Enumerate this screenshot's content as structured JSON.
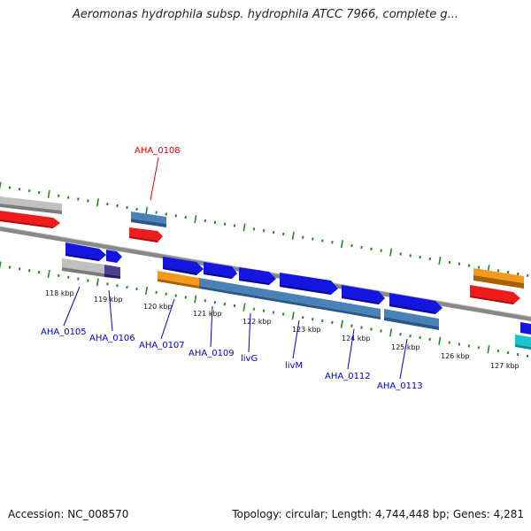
{
  "header": {
    "title": "Aeromonas hydrophila subsp. hydrophila ATCC 7966, complete g..."
  },
  "footer": {
    "accession": "Accession: NC_008570",
    "topology": "Topology: circular; Length: 4,744,448 bp; Genes: 4,281"
  },
  "colors": {
    "forward_cds": "#1515e0",
    "reverse_cds": "#4a82b8",
    "rna": "#ee1c1c",
    "pseudogene": "#c0c0c0",
    "orange_feature": "#f39a1e",
    "cyan_feature": "#19c4cc",
    "dark_feature": "#4b3f8e",
    "highlight_label": "#dd0000",
    "gene_label": "#0000cc",
    "tick": "#228822",
    "backbone": "#888888"
  },
  "scale": {
    "ticks": [
      {
        "label": "118 kbp"
      },
      {
        "label": "119 kbp"
      },
      {
        "label": "120 kbp"
      },
      {
        "label": "121 kbp"
      },
      {
        "label": "122 kbp"
      },
      {
        "label": "123 kbp"
      },
      {
        "label": "124 kbp"
      },
      {
        "label": "125 kbp"
      },
      {
        "label": "126 kbp"
      },
      {
        "label": "127 kbp"
      }
    ]
  },
  "genes": {
    "highlighted": {
      "label": "AHA_0108"
    },
    "labels": [
      {
        "label": "AHA_0105"
      },
      {
        "label": "AHA_0106"
      },
      {
        "label": "AHA_0107"
      },
      {
        "label": "AHA_0109"
      },
      {
        "label": "livG"
      },
      {
        "label": "livM"
      },
      {
        "label": "AHA_0112"
      },
      {
        "label": "AHA_0113"
      }
    ]
  }
}
